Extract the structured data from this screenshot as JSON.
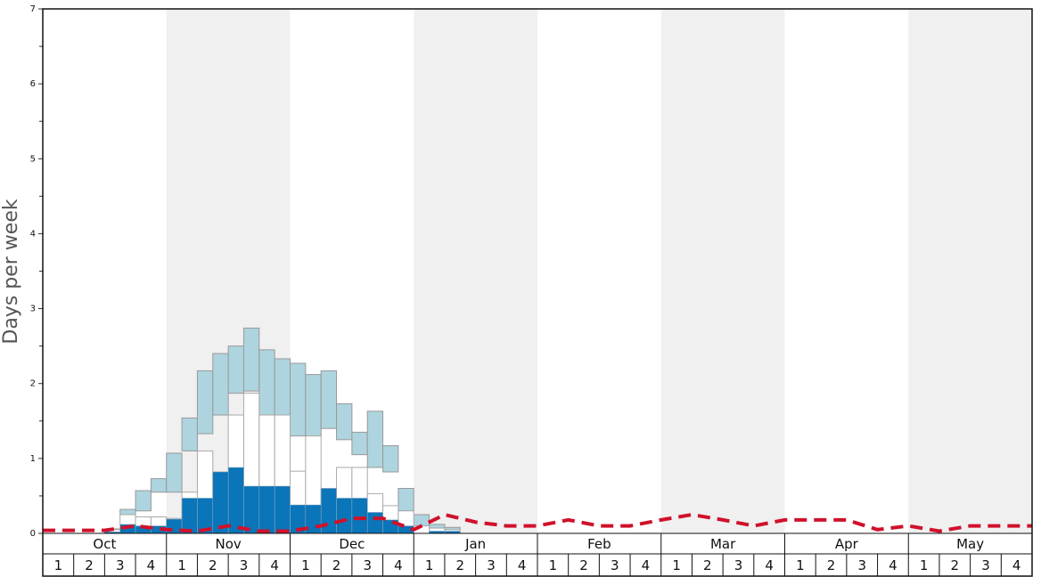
{
  "chart_data": {
    "type": "bar",
    "y_label": "Days per week",
    "months": [
      "Oct",
      "Nov",
      "Dec",
      "Jan",
      "Feb",
      "Mar",
      "Apr",
      "May"
    ],
    "weeks": [
      "1",
      "2",
      "3",
      "4"
    ],
    "xlim": [
      0,
      32
    ],
    "ylim": [
      0,
      7
    ],
    "yticks": [
      0,
      1,
      2,
      3,
      4,
      5,
      6,
      7
    ],
    "yminor_ticks": [
      0.5,
      1.5,
      2.5,
      3.5,
      4.5,
      5.5,
      6.5
    ],
    "bar_width": 0.5,
    "x": [
      2,
      2.5,
      3,
      3.5,
      4,
      4.5,
      5,
      5.5,
      6,
      6.5,
      7,
      7.5,
      8,
      8.5,
      9,
      9.5,
      10,
      10.5,
      11,
      11.5,
      12,
      12.5,
      13
    ],
    "series": [
      {
        "color": "#aed4df",
        "low": [
          0.05,
          0.25,
          0.3,
          0.55,
          0.55,
          1.1,
          1.33,
          1.58,
          1.87,
          1.9,
          1.58,
          1.58,
          1.3,
          1.3,
          1.4,
          1.25,
          1.05,
          0.88,
          0.82,
          0.3,
          0.1,
          0.07,
          0.05
        ],
        "high": [
          0.06,
          0.32,
          0.57,
          0.73,
          1.07,
          1.54,
          2.17,
          2.4,
          2.5,
          2.74,
          2.45,
          2.33,
          2.27,
          2.12,
          2.17,
          1.73,
          1.35,
          1.63,
          1.17,
          0.6,
          0.25,
          0.12,
          0.08
        ]
      },
      {
        "color": "#ffffff",
        "values": [
          0.05,
          0.25,
          0.22,
          0.22,
          0.2,
          0.55,
          1.1,
          0.82,
          1.58,
          1.87,
          1.58,
          1.58,
          0.83,
          1.3,
          0.6,
          0.88,
          0.88,
          0.53,
          0.37,
          0.3,
          0.1,
          0.07,
          0.05
        ]
      },
      {
        "color": "#0a75b8",
        "values": [
          0.02,
          0.12,
          0.1,
          0.1,
          0.19,
          0.47,
          0.47,
          0.82,
          0.88,
          0.63,
          0.63,
          0.63,
          0.38,
          0.38,
          0.6,
          0.47,
          0.47,
          0.28,
          0.18,
          0.1,
          0,
          0.03,
          0.03
        ]
      }
    ],
    "line": {
      "color": "#d0112b",
      "x": [
        0,
        1,
        2,
        3,
        4,
        5,
        6,
        7,
        8,
        9,
        10,
        11,
        12,
        13,
        14,
        15,
        16,
        17,
        18,
        19,
        20,
        21,
        22,
        23,
        24,
        25,
        26,
        27,
        28,
        29,
        30,
        31,
        32
      ],
      "values": [
        0.04,
        0.04,
        0.04,
        0.1,
        0.05,
        0.03,
        0.1,
        0.03,
        0.03,
        0.1,
        0.2,
        0.2,
        0.05,
        0.25,
        0.15,
        0.1,
        0.1,
        0.18,
        0.1,
        0.1,
        0.18,
        0.25,
        0.18,
        0.1,
        0.18,
        0.18,
        0.18,
        0.05,
        0.1,
        0.03,
        0.1,
        0.1,
        0.1
      ]
    }
  }
}
